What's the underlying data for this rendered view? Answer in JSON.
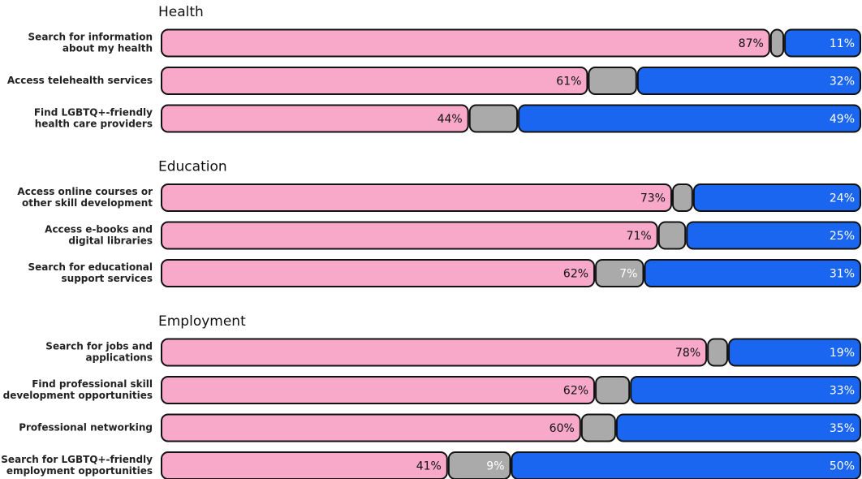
{
  "chart_data": [
    {
      "type": "bar",
      "orientation": "horizontal",
      "stacked": true,
      "title": "Health",
      "xlim": [
        0,
        100
      ],
      "categories": [
        [
          "Search for information",
          "about my health"
        ],
        [
          "Access telehealth services"
        ],
        [
          "Find LGBTQ+-friendly",
          "health care providers"
        ]
      ],
      "series": [
        {
          "color": "#f8a8c8",
          "values": [
            87,
            61,
            44
          ],
          "value_labels": [
            "87%",
            "61%",
            "44%"
          ]
        },
        {
          "color": "#aaaaaa",
          "values": [
            2,
            7,
            7
          ],
          "value_labels": [
            null,
            null,
            null
          ]
        },
        {
          "color": "#1a66f0",
          "values": [
            11,
            32,
            49
          ],
          "value_labels": [
            "11%",
            "32%",
            "49%"
          ]
        }
      ]
    },
    {
      "type": "bar",
      "orientation": "horizontal",
      "stacked": true,
      "title": "Education",
      "xlim": [
        0,
        100
      ],
      "categories": [
        [
          "Access online courses or",
          "other skill development"
        ],
        [
          "Access e-books and",
          "digital libraries"
        ],
        [
          "Search for educational",
          "support services"
        ]
      ],
      "series": [
        {
          "color": "#f8a8c8",
          "values": [
            73,
            71,
            62
          ],
          "value_labels": [
            "73%",
            "71%",
            "62%"
          ]
        },
        {
          "color": "#aaaaaa",
          "values": [
            3,
            4,
            7
          ],
          "value_labels": [
            null,
            null,
            "7%"
          ]
        },
        {
          "color": "#1a66f0",
          "values": [
            24,
            25,
            31
          ],
          "value_labels": [
            "24%",
            "25%",
            "31%"
          ]
        }
      ]
    },
    {
      "type": "bar",
      "orientation": "horizontal",
      "stacked": true,
      "title": "Employment",
      "xlim": [
        0,
        100
      ],
      "categories": [
        [
          "Search for jobs and",
          "applications"
        ],
        [
          "Find professional skill",
          "development opportunities"
        ],
        [
          "Professional networking"
        ],
        [
          "Search for LGBTQ+-friendly",
          "employment opportunities"
        ]
      ],
      "series": [
        {
          "color": "#f8a8c8",
          "values": [
            78,
            62,
            60,
            41
          ],
          "value_labels": [
            "78%",
            "62%",
            "60%",
            "41%"
          ]
        },
        {
          "color": "#aaaaaa",
          "values": [
            3,
            5,
            5,
            9
          ],
          "value_labels": [
            null,
            null,
            null,
            "9%"
          ]
        },
        {
          "color": "#1a66f0",
          "values": [
            19,
            33,
            35,
            50
          ],
          "value_labels": [
            "19%",
            "33%",
            "35%",
            "50%"
          ]
        }
      ]
    }
  ]
}
